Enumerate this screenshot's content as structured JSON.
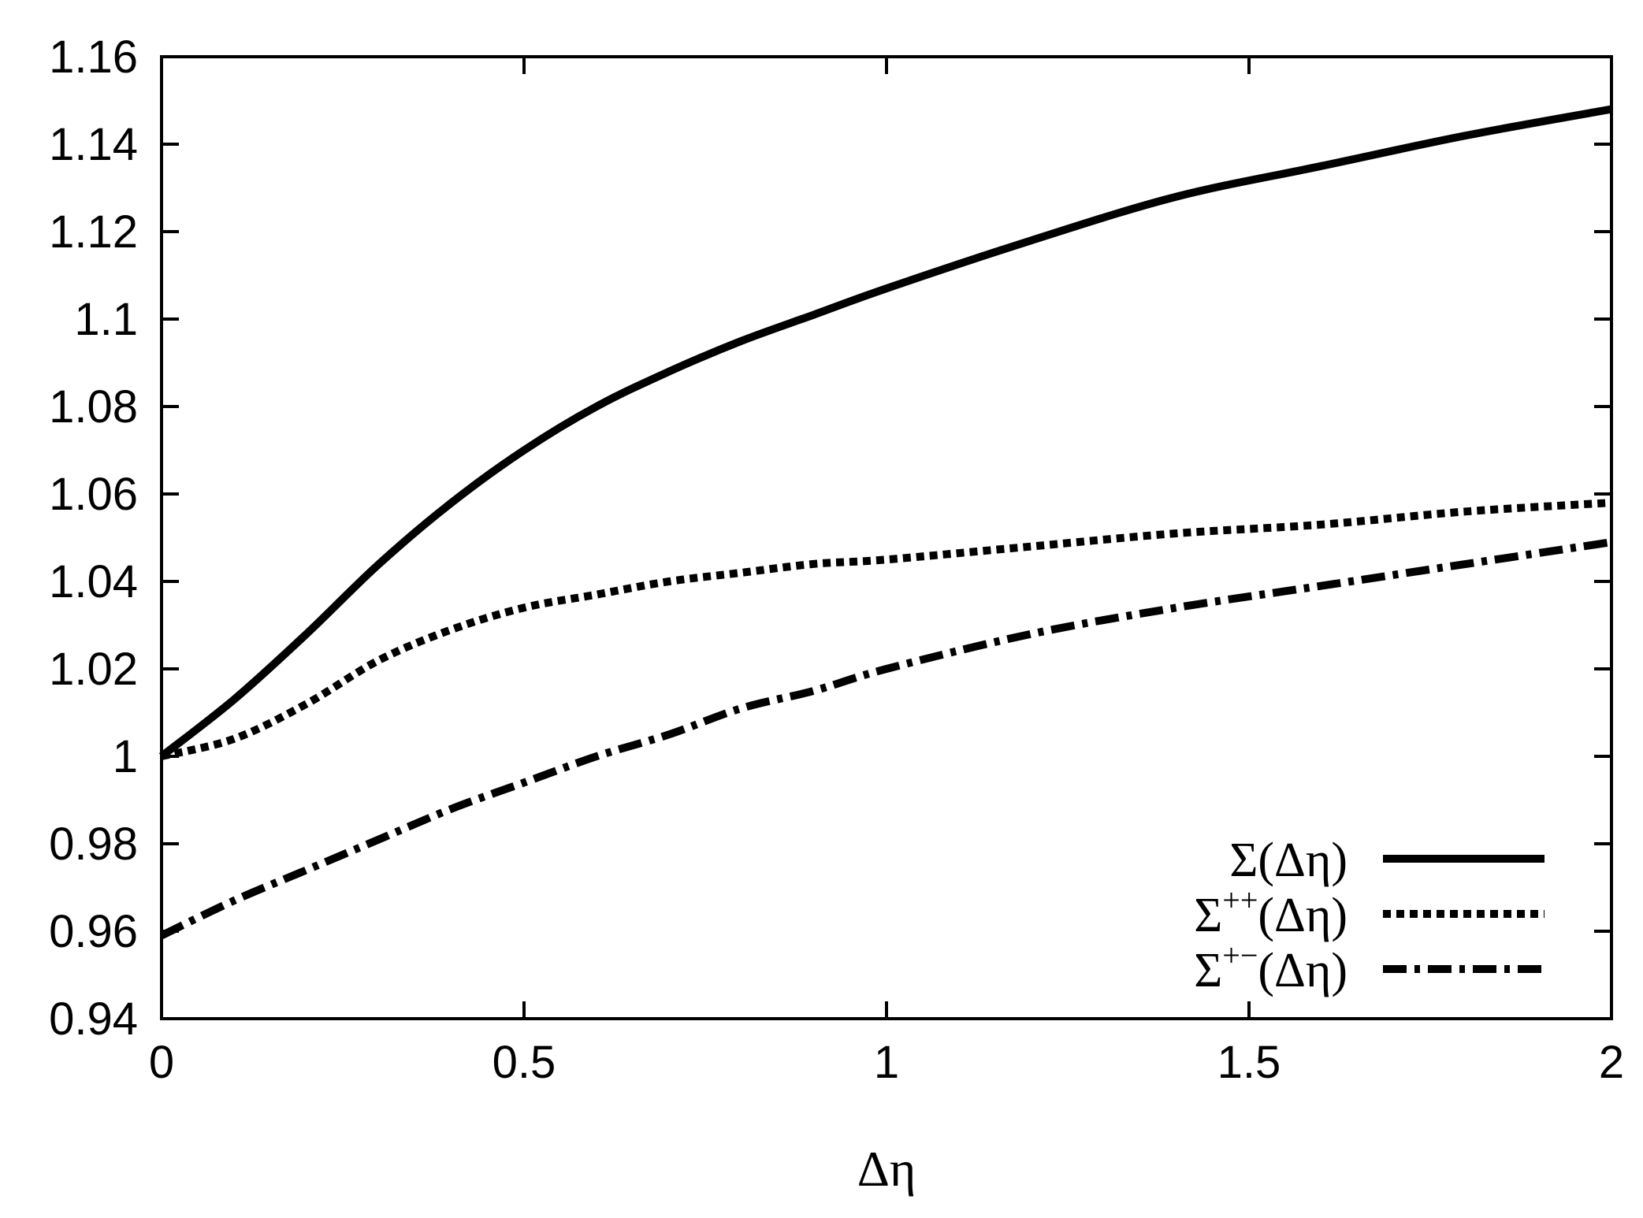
{
  "chart_data": {
    "type": "line",
    "xlabel": "Δη",
    "ylabel": "",
    "title": "",
    "xlim": [
      0,
      2
    ],
    "ylim": [
      0.94,
      1.16
    ],
    "x_ticks": [
      0,
      0.5,
      1,
      1.5,
      2
    ],
    "x_tick_labels": [
      "0",
      "0.5",
      "1",
      "1.5",
      "2"
    ],
    "y_ticks": [
      0.94,
      0.96,
      0.98,
      1.0,
      1.02,
      1.04,
      1.06,
      1.08,
      1.1,
      1.12,
      1.14,
      1.16
    ],
    "y_tick_labels": [
      "0.94",
      "0.96",
      "0.98",
      "1",
      "1.02",
      "1.04",
      "1.06",
      "1.08",
      "1.1",
      "1.12",
      "1.14",
      "1.16"
    ],
    "grid": false,
    "legend_position": "bottom-right",
    "series": [
      {
        "base": "Σ",
        "sup": "",
        "arg": "(Δη)",
        "style": "solid",
        "color": "#000000",
        "x": [
          0,
          0.1,
          0.2,
          0.3,
          0.4,
          0.5,
          0.6,
          0.7,
          0.8,
          0.9,
          1.0,
          1.2,
          1.4,
          1.6,
          1.8,
          2.0
        ],
        "y": [
          1.0,
          1.013,
          1.028,
          1.044,
          1.058,
          1.07,
          1.08,
          1.088,
          1.095,
          1.101,
          1.107,
          1.118,
          1.128,
          1.135,
          1.142,
          1.148
        ]
      },
      {
        "base": "Σ",
        "sup": "++",
        "arg": "(Δη)",
        "style": "dotted",
        "color": "#000000",
        "x": [
          0,
          0.1,
          0.2,
          0.3,
          0.4,
          0.5,
          0.6,
          0.7,
          0.8,
          0.9,
          1.0,
          1.2,
          1.4,
          1.6,
          1.8,
          2.0
        ],
        "y": [
          1.0,
          1.004,
          1.012,
          1.022,
          1.029,
          1.034,
          1.037,
          1.04,
          1.042,
          1.044,
          1.045,
          1.048,
          1.051,
          1.053,
          1.056,
          1.058
        ]
      },
      {
        "base": "Σ",
        "sup": "+−",
        "arg": "(Δη)",
        "style": "dash-dot",
        "color": "#000000",
        "x": [
          0,
          0.1,
          0.2,
          0.3,
          0.4,
          0.5,
          0.6,
          0.7,
          0.8,
          0.9,
          1.0,
          1.2,
          1.4,
          1.6,
          1.8,
          2.0
        ],
        "y": [
          0.959,
          0.967,
          0.974,
          0.981,
          0.988,
          0.994,
          1.0,
          1.005,
          1.011,
          1.015,
          1.02,
          1.028,
          1.034,
          1.039,
          1.044,
          1.049
        ]
      }
    ]
  }
}
